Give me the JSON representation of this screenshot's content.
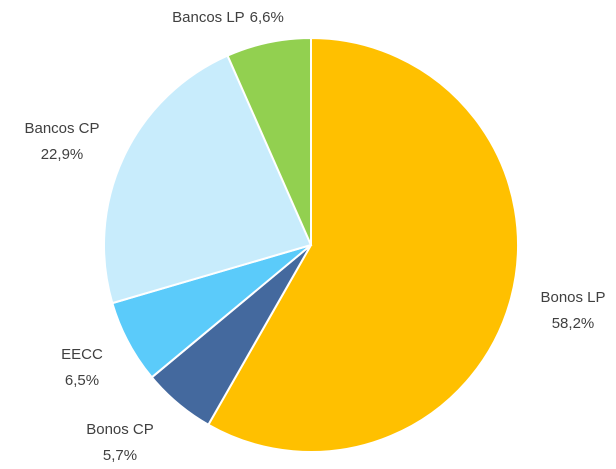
{
  "chart_data": {
    "type": "pie",
    "categories": [
      "Bonos LP",
      "Bonos CP",
      "EECC",
      "Bancos CP",
      "Bancos LP"
    ],
    "values": [
      58.2,
      5.7,
      6.5,
      22.9,
      6.6
    ],
    "value_labels": [
      "58,2%",
      "5,7%",
      "6,5%",
      "22,9%",
      "6,6%"
    ],
    "colors": [
      "#FFC000",
      "#44699E",
      "#5BCBFA",
      "#C8ECFC",
      "#92D050"
    ]
  }
}
